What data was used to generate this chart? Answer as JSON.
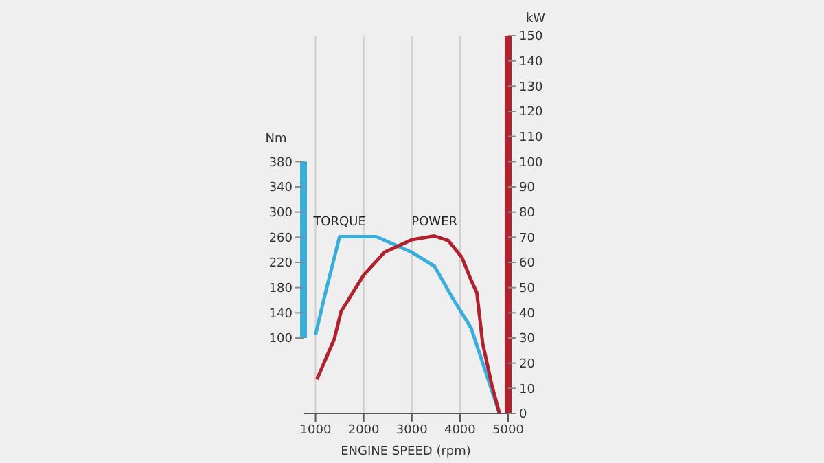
{
  "chart_data": {
    "type": "line",
    "xlabel": "ENGINE SPEED (rpm)",
    "ylabel": "Nm",
    "y2label": "kW",
    "xlim": [
      750,
      5000
    ],
    "xticks": [
      1000,
      2000,
      3000,
      4000,
      5000
    ],
    "ylim": [
      -20,
      580
    ],
    "yticks": [
      100,
      140,
      180,
      220,
      260,
      300,
      340,
      380
    ],
    "y2lim": [
      0,
      150
    ],
    "y2ticks": [
      0,
      10,
      20,
      30,
      40,
      50,
      60,
      70,
      80,
      90,
      100,
      110,
      120,
      130,
      140,
      150
    ],
    "grid": "x",
    "legend": false,
    "marker": "none",
    "line_style": "solid",
    "series": [
      {
        "name": "TORQUE",
        "color": "#3aaedb",
        "x": [
          1000,
          1200,
          1500,
          2260,
          3000,
          3470,
          3850,
          4230,
          4820
        ],
        "values": [
          105,
          170,
          261,
          261,
          236,
          214,
          163,
          116,
          -20
        ]
      },
      {
        "name": "POWER",
        "color": "#b0232e",
        "axis": "y2",
        "x": [
          1030,
          1390,
          1530,
          2000,
          2430,
          3000,
          3470,
          3760,
          4040,
          4230,
          4350,
          4470,
          4660,
          4820
        ],
        "values": [
          13.6,
          29.6,
          40.5,
          55,
          64,
          69,
          70.5,
          68.6,
          62,
          53,
          48,
          28,
          11.4,
          0
        ]
      }
    ]
  }
}
